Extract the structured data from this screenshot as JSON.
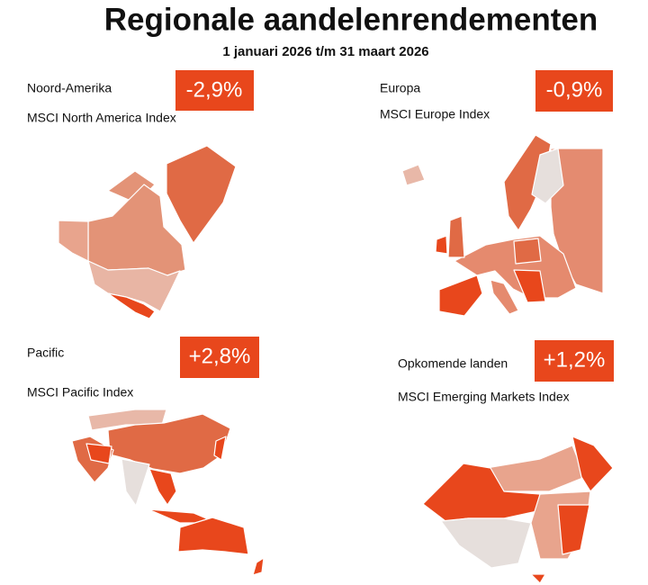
{
  "header": {
    "title": "Regionale aandelenrendementen",
    "subtitle": "1 januari 2026 t/m 31 maart 2026"
  },
  "panels": [
    {
      "region": "Noord-Amerika",
      "return": "-2,9%",
      "index": "MSCI North America Index"
    },
    {
      "region": "Europa",
      "return": "-0,9%",
      "index": "MSCI Europe Index"
    },
    {
      "region": "Pacific",
      "return": "+2,8%",
      "index": "MSCI Pacific Index"
    },
    {
      "region": "Opkomende landen",
      "return": "+1,2%",
      "index": "MSCI Emerging Markets Index"
    }
  ]
}
